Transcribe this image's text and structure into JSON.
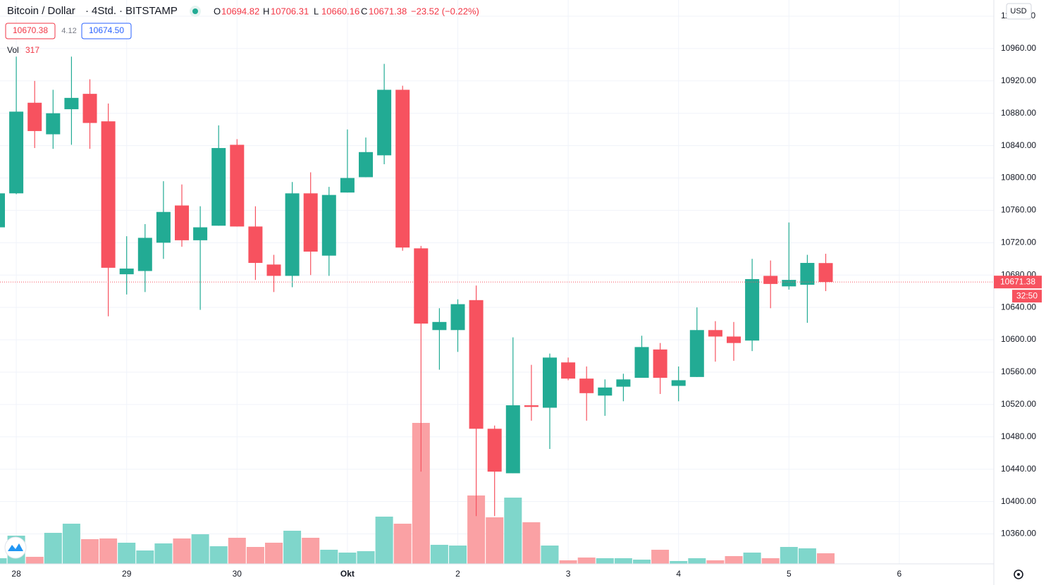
{
  "chart_data": {
    "type": "candlestick",
    "title": "Bitcoin / Dollar",
    "interval": "4Std.",
    "exchange": "BITSTAMP",
    "ohlc_legend": [
      {
        "label": "O",
        "value": "10694.82"
      },
      {
        "label": "H",
        "value": "10706.31"
      },
      {
        "label": "L",
        "value": "10660.16"
      },
      {
        "label": "C",
        "value": "10671.38"
      }
    ],
    "change": "−23.52 (−0.22%)",
    "bid": 10670.38,
    "spread": 4.12,
    "ask": 10674.5,
    "ask_label": "10674.50",
    "volume_label": "Vol",
    "volume_last": 317,
    "currency": "USD",
    "last_price": 10671.38,
    "countdown": "32:50",
    "up_color": "#22ab94",
    "down_color": "#f7525f",
    "volume_up_color": "#7fd6cb",
    "volume_down_color": "#faa1a4",
    "categories": [
      null,
      "28",
      null,
      null,
      null,
      null,
      null,
      "29",
      null,
      null,
      null,
      null,
      null,
      "30",
      null,
      null,
      null,
      null,
      null,
      "Okt",
      null,
      null,
      null,
      null,
      null,
      "2",
      null,
      null,
      null,
      null,
      null,
      "3",
      null,
      null,
      null,
      null,
      null,
      "4",
      null,
      null,
      null,
      null,
      null,
      "5",
      null,
      null,
      null,
      null,
      null,
      "6"
    ],
    "open": [
      10739,
      10781,
      10893,
      10854,
      10885,
      10904,
      10870,
      10681,
      10685,
      10720,
      10766,
      10723,
      10741,
      10841,
      10740,
      10693,
      10679,
      10781,
      10704,
      10782,
      10801,
      10828,
      10909,
      10713,
      10612,
      10612,
      10649,
      10490,
      10435,
      10519,
      10516,
      10572,
      10552,
      10531,
      10542,
      10553,
      10588,
      10543,
      10554,
      10612,
      10604,
      10599,
      10679,
      10666,
      10668,
      10694.82,
      null,
      null,
      null,
      null
    ],
    "high": [
      10790,
      10950,
      10920,
      10909,
      10950,
      10922,
      10892,
      10728,
      10743,
      10796,
      10792,
      10765,
      10865,
      10848,
      10765,
      10705,
      10795,
      10807,
      10789,
      10860,
      10850,
      10941,
      10914,
      10716,
      10639,
      10650,
      10667,
      10494,
      10603,
      10569,
      10583,
      10578,
      10567,
      10551,
      10558,
      10605,
      10596,
      10567,
      10640,
      10623,
      10622,
      10700,
      10698,
      10745,
      10705,
      10706.31,
      null,
      null,
      null,
      null
    ],
    "low": [
      10735,
      10780,
      10837,
      10836,
      10841,
      10836,
      10629,
      10656,
      10659,
      10700,
      10715,
      10637,
      10741,
      10740,
      10674,
      10659,
      10665,
      10680,
      10679,
      10782,
      10801,
      10817,
      10710,
      10437,
      10563,
      10585,
      10382,
      10382,
      10435,
      10500,
      10465,
      10550,
      10500,
      10506,
      10524,
      10553,
      10533,
      10524,
      10554,
      10573,
      10574,
      10586,
      10639,
      10662,
      10621,
      10660.16,
      null,
      null,
      null,
      null
    ],
    "close": [
      10781,
      10882,
      10858,
      10880,
      10899,
      10868,
      10689,
      10688,
      10726,
      10758,
      10723,
      10739,
      10837,
      10740,
      10695,
      10679,
      10781,
      10709,
      10779,
      10800,
      10832,
      10909,
      10714,
      10620,
      10622,
      10644,
      10490,
      10437,
      10519,
      10517,
      10578,
      10552,
      10534,
      10541,
      10551,
      10591,
      10553,
      10550,
      10612,
      10604,
      10596,
      10675,
      10669,
      10674,
      10695,
      10671.38,
      null,
      null,
      null,
      null
    ],
    "volume": [
      169,
      845,
      211,
      930,
      1204,
      740,
      761,
      634,
      401,
      613,
      761,
      887,
      528,
      782,
      507,
      634,
      993,
      782,
      423,
      338,
      380,
      1416,
      1204,
      4226,
      571,
      549,
      2050,
      1395,
      1986,
      1247,
      549,
      106,
      190,
      169,
      169,
      127,
      423,
      85,
      169,
      106,
      232,
      338,
      169,
      507,
      465,
      317,
      null,
      null,
      null,
      null
    ],
    "ylim": [
      10323,
      11020
    ],
    "yticks": [
      {
        "value": 10360,
        "label": "10360.00"
      },
      {
        "value": 10400,
        "label": "10400.00"
      },
      {
        "value": 10440,
        "label": "10440.00"
      },
      {
        "value": 10480,
        "label": "10480.00"
      },
      {
        "value": 10520,
        "label": "10520.00"
      },
      {
        "value": 10560,
        "label": "10560.00"
      },
      {
        "value": 10600,
        "label": "10600.00"
      },
      {
        "value": 10640,
        "label": "10640.00"
      },
      {
        "value": 10680,
        "label": "10680.00"
      },
      {
        "value": 10720,
        "label": "10720.00"
      },
      {
        "value": 10760,
        "label": "10760.00"
      },
      {
        "value": 10800,
        "label": "10800.00"
      },
      {
        "value": 10840,
        "label": "10840.00"
      },
      {
        "value": 10880,
        "label": "10880.00"
      },
      {
        "value": 10920,
        "label": "10920.00"
      },
      {
        "value": 10960,
        "label": "10960.00"
      },
      {
        "value": 11000,
        "label": "11000.00"
      }
    ],
    "y2lim": [
      0,
      16904
    ],
    "grid": true
  }
}
